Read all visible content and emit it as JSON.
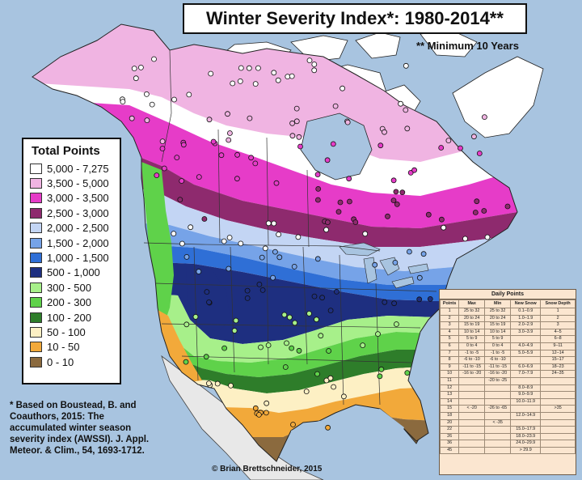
{
  "title": "Winter Severity Index*: 1980-2014**",
  "subtitle": "** Minimum 10 Years",
  "legend": {
    "title": "Total Points",
    "items": [
      {
        "label": "5,000 - 7,275",
        "color": "#ffffff"
      },
      {
        "label": "3,500 - 5,000",
        "color": "#f0b4e2"
      },
      {
        "label": "3,000 - 3,500",
        "color": "#e63cc8"
      },
      {
        "label": "2,500 - 3,000",
        "color": "#8e2a6e"
      },
      {
        "label": "2,000 - 2,500",
        "color": "#c3d5f4"
      },
      {
        "label": "1,500 - 2,000",
        "color": "#76a3e8"
      },
      {
        "label": "1,000 - 1,500",
        "color": "#2f6fd6"
      },
      {
        "label": "500 - 1,000",
        "color": "#1e2f80"
      },
      {
        "label": "300 - 500",
        "color": "#a7f08a"
      },
      {
        "label": "200 - 300",
        "color": "#5fd24a"
      },
      {
        "label": "100 - 200",
        "color": "#2e7d2a"
      },
      {
        "label": "50 - 100",
        "color": "#fdf0c4"
      },
      {
        "label": "10 - 50",
        "color": "#f2a93a"
      },
      {
        "label": "0 - 10",
        "color": "#8b6a3e"
      }
    ]
  },
  "daily_points": {
    "title": "Daily Points",
    "headers": [
      "Points",
      "Max",
      "Min",
      "New Snow",
      "Snow Depth"
    ],
    "rows": [
      [
        "1",
        "25 to 32",
        "25 to 32",
        "0.1–0.9",
        "1"
      ],
      [
        "2",
        "20 to 24",
        "20 to 24",
        "1.0–1.9",
        "2"
      ],
      [
        "3",
        "15 to 19",
        "15 to 19",
        "2.0–2.9",
        "3"
      ],
      [
        "4",
        "10 to 14",
        "10 to 14",
        "3.0–3.9",
        "4–5"
      ],
      [
        "5",
        "5 to 9",
        "5 to 9",
        "",
        "6–8"
      ],
      [
        "6",
        "0 to 4",
        "0 to 4",
        "4.0–4.9",
        "9–11"
      ],
      [
        "7",
        "-1 to -5",
        "-1 to -5",
        "5.0–5.9",
        "12–14"
      ],
      [
        "8",
        "-6 to -10",
        "-6 to -10",
        "",
        "15–17"
      ],
      [
        "9",
        "-11 to -15",
        "-11 to -15",
        "6.0–6.9",
        "18–23"
      ],
      [
        "10",
        "-16 to -20",
        "-16 to -20",
        "7.0–7.9",
        "24–35"
      ],
      [
        "11",
        "",
        "-20 to -25",
        "",
        ""
      ],
      [
        "12",
        "",
        "",
        "8.0–8.9",
        ""
      ],
      [
        "13",
        "",
        "",
        "9.0–9.9",
        ""
      ],
      [
        "14",
        "",
        "",
        "10.0–11.9",
        ""
      ],
      [
        "15",
        "< -20",
        "-26 to -65",
        "",
        ">35"
      ],
      [
        "18",
        "",
        "",
        "12.0–14.9",
        ""
      ],
      [
        "20",
        "",
        "< -35",
        "",
        ""
      ],
      [
        "22",
        "",
        "",
        "15.0–17.9",
        ""
      ],
      [
        "26",
        "",
        "",
        "18.0–23.9",
        ""
      ],
      [
        "36",
        "",
        "",
        "24.0–29.9",
        ""
      ],
      [
        "45",
        "",
        "",
        "> 29.9",
        ""
      ]
    ]
  },
  "citation": "* Based on Boustead, B. and Coauthors, 2015: The accumulated winter season severity index (AWSSI). J. Appl. Meteor. & Clim., 54, 1693-1712.",
  "credit": "© Brian Brettschneider, 2015",
  "colors": {
    "ocean": "#a8c4e0",
    "arctic_land": "#ffffff",
    "unanalyzed_land": "#e8e8e8",
    "border": "#222222"
  }
}
